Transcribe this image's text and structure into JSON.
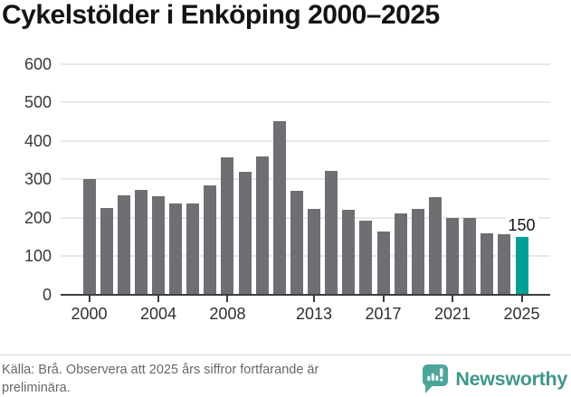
{
  "title": "Cykelstölder i Enköping 2000–2025",
  "chart_data": {
    "type": "bar",
    "x": [
      2000,
      2001,
      2002,
      2003,
      2004,
      2005,
      2006,
      2007,
      2008,
      2009,
      2010,
      2011,
      2012,
      2013,
      2014,
      2015,
      2016,
      2017,
      2018,
      2019,
      2020,
      2021,
      2022,
      2023,
      2024,
      2025
    ],
    "values": [
      300,
      225,
      257,
      272,
      256,
      238,
      238,
      285,
      357,
      320,
      360,
      452,
      270,
      222,
      322,
      220,
      192,
      163,
      211,
      223,
      254,
      200,
      200,
      159,
      157,
      150
    ],
    "highlight_x": 2025,
    "highlight_value_label": "150",
    "x_tick_labels": [
      "2000",
      "2004",
      "2008",
      "2013",
      "2017",
      "2021",
      "2025"
    ],
    "y_tick_labels": [
      "0",
      "100",
      "200",
      "300",
      "400",
      "500",
      "600"
    ],
    "ylim": [
      0,
      600
    ],
    "grid": true,
    "legend": "none",
    "colors": {
      "bar": "#6f6f73",
      "highlight": "#00a096",
      "grid": "#e8e8e8",
      "axis": "#3b3d40",
      "tick_text": "#37393b"
    }
  },
  "footer": {
    "source": "Källa: Brå. Observera att 2025 års siffror fortfarande är preliminära.",
    "brand": "Newsworthy",
    "brand_color": "#3f978d",
    "brand_icon": "newsworthy-speech-bubble-bar-chart-icon"
  }
}
